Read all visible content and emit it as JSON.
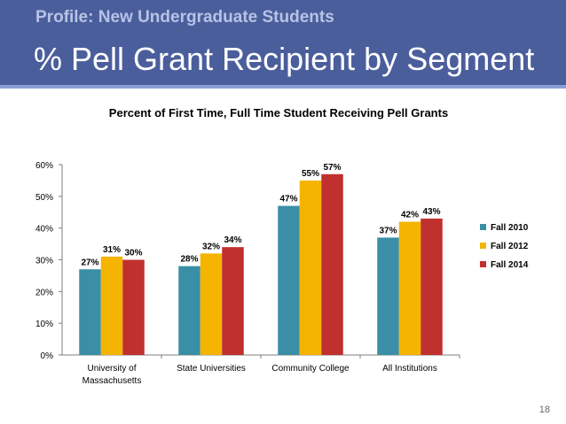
{
  "header": {
    "subtitle": "Profile: New Undergraduate Students",
    "title": "% Pell Grant Recipient by Segment"
  },
  "page_number": "18",
  "colors": {
    "header_bg": "#4b5e9c",
    "fall_2010": "#3a8ea5",
    "fall_2012": "#f4b400",
    "fall_2014": "#c0302e"
  },
  "chart_data": {
    "type": "bar",
    "title": "Percent of First Time, Full Time Student Receiving Pell Grants",
    "categories": [
      "University of Massachusetts",
      "State Universities",
      "Community College",
      "All Institutions"
    ],
    "category_lines": [
      [
        "University of",
        "Massachusetts"
      ],
      [
        "State Universities"
      ],
      [
        "Community College"
      ],
      [
        "All Institutions"
      ]
    ],
    "series": [
      {
        "name": "Fall 2010",
        "values": [
          27,
          28,
          47,
          37
        ],
        "labels": [
          "27%",
          "28%",
          "47%",
          "37%"
        ],
        "color": "#3a8ea5"
      },
      {
        "name": "Fall 2012",
        "values": [
          31,
          32,
          55,
          42
        ],
        "labels": [
          "31%",
          "32%",
          "55%",
          "42%"
        ],
        "color": "#f4b400"
      },
      {
        "name": "Fall 2014",
        "values": [
          30,
          34,
          57,
          43
        ],
        "labels": [
          "30%",
          "34%",
          "57%",
          "43%"
        ],
        "color": "#c0302e"
      }
    ],
    "ylim": [
      0,
      60
    ],
    "yticks": [
      0,
      10,
      20,
      30,
      40,
      50,
      60
    ],
    "ytick_labels": [
      "0%",
      "10%",
      "20%",
      "30%",
      "40%",
      "50%",
      "60%"
    ],
    "xlabel": "",
    "ylabel": "",
    "legend_position": "right",
    "grid": false
  }
}
